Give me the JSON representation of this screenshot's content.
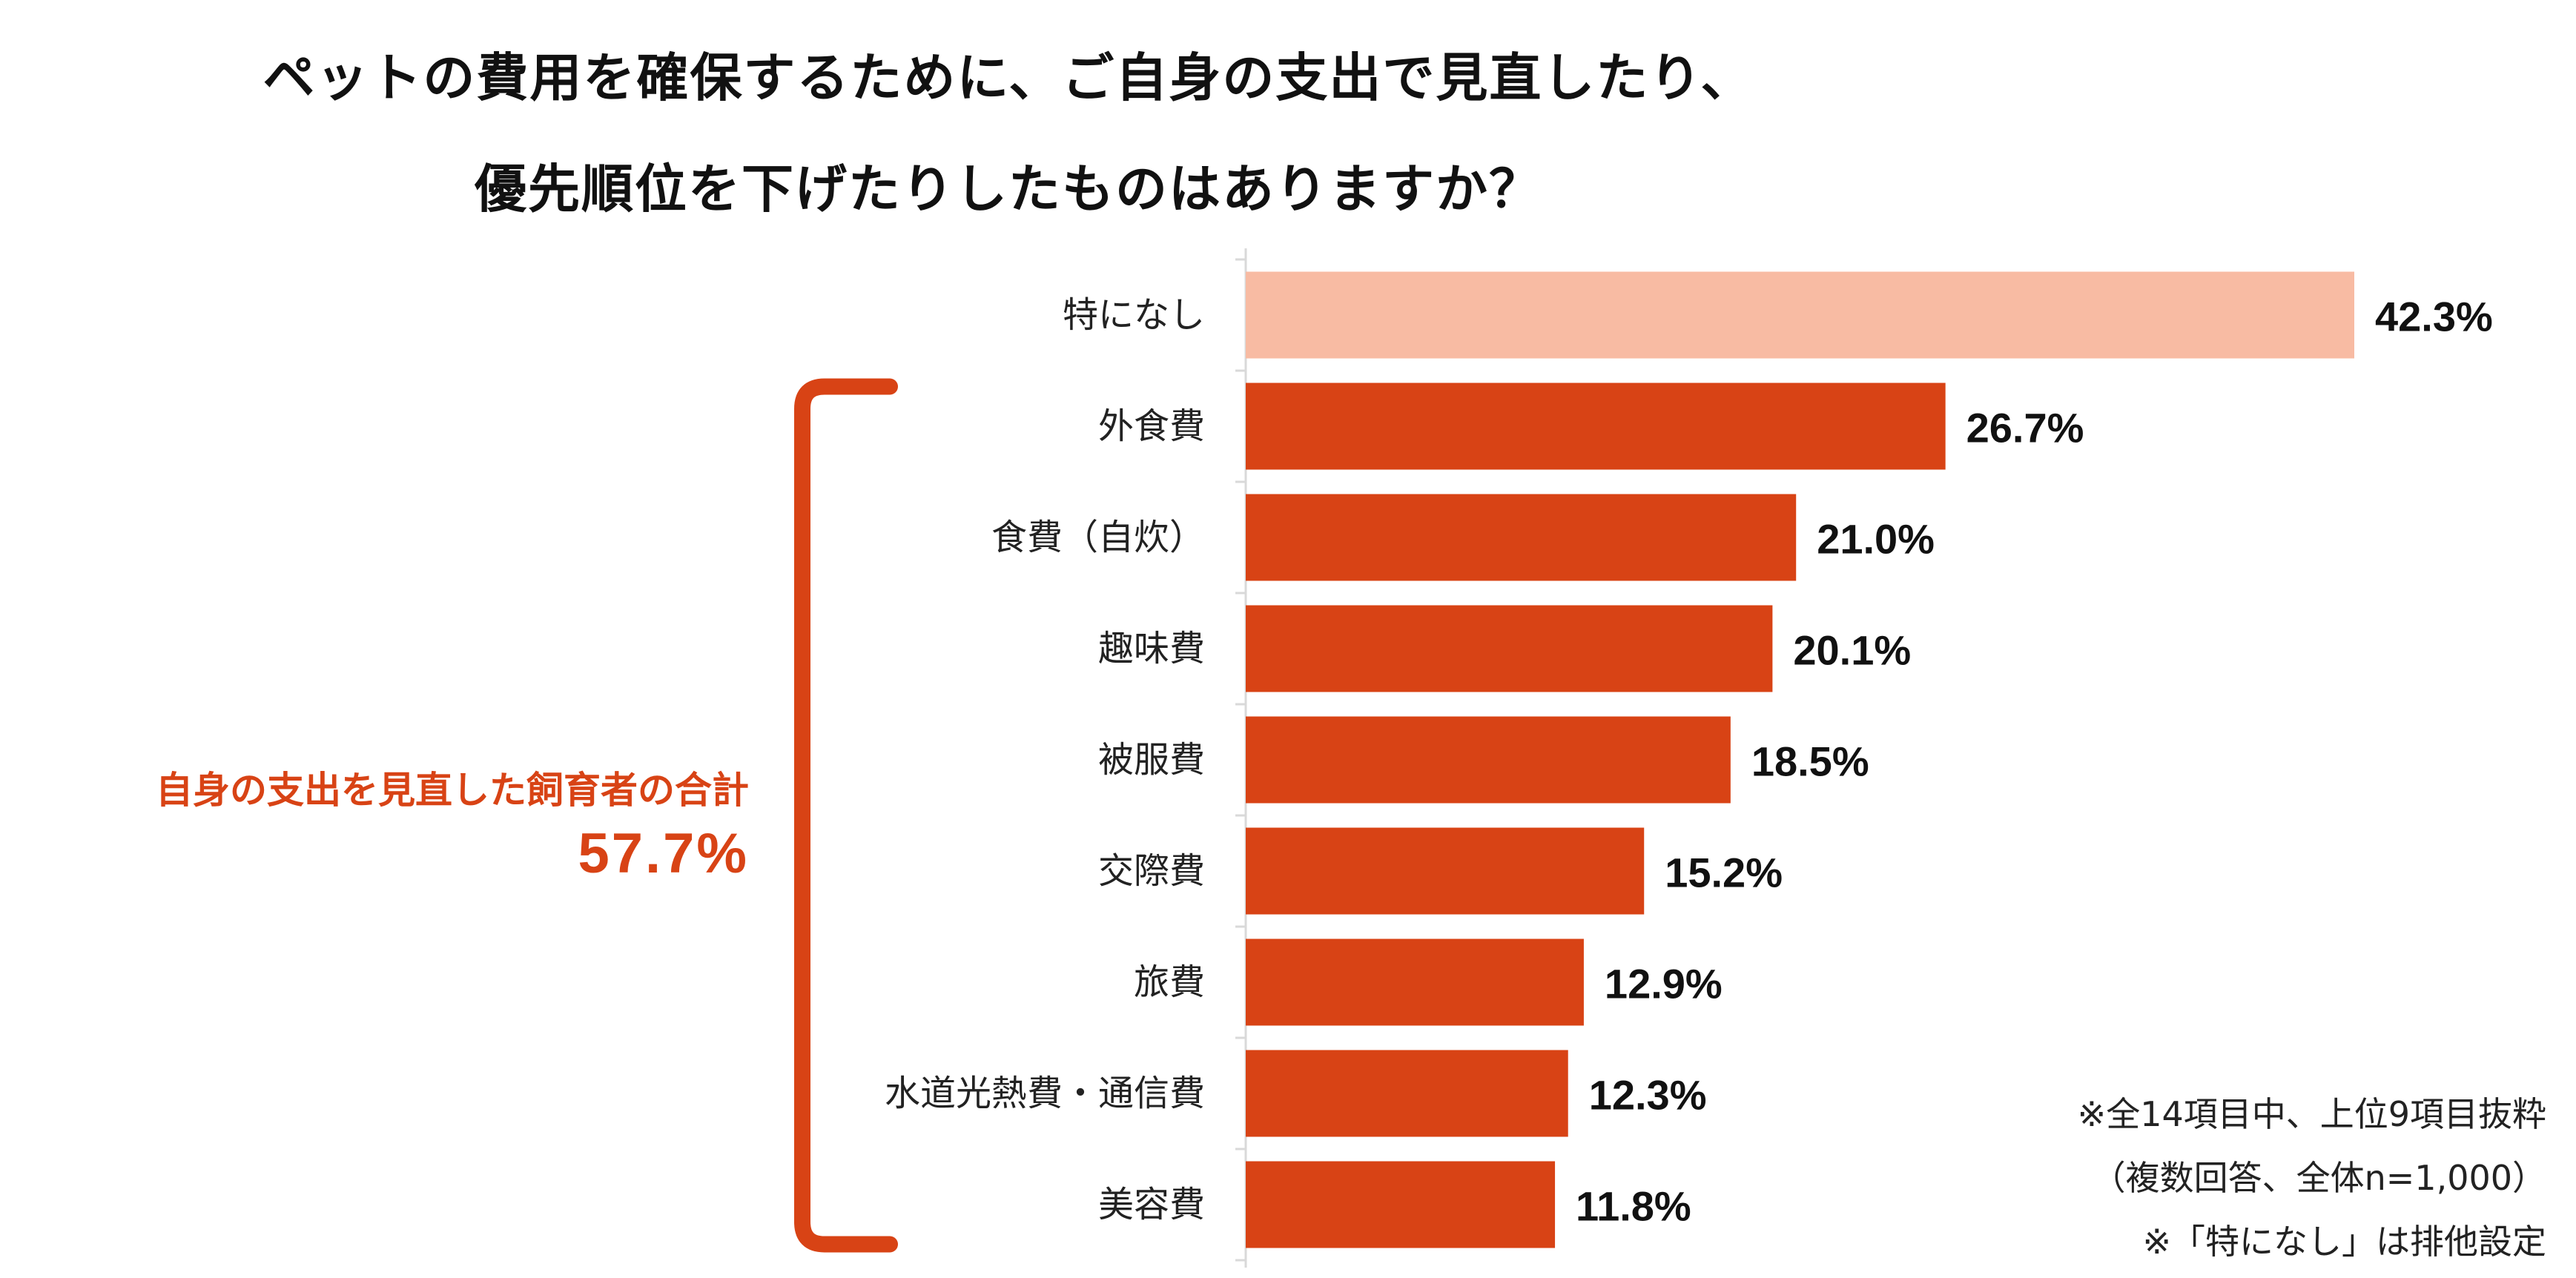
{
  "title": {
    "line1": "ペットの費用を確保するために、ご自身の支出で見直したり、",
    "line2": "優先順位を下げたりしたものはありますか？"
  },
  "group_label": {
    "text": "自身の支出を見直した飼育者の合計",
    "value": "57.7%"
  },
  "notes": {
    "line1": "※全14項目中、上位9項目抜粋",
    "line2": "（複数回答、全体n=1,000）",
    "line3": "※「特になし」は排他設定"
  },
  "colors": {
    "highlight_bar": "#f8bba3",
    "bar": "#d84315",
    "bracket": "#d84315",
    "axis": "#d9d9d9"
  },
  "chart_data": {
    "type": "bar",
    "orientation": "horizontal",
    "categories": [
      "特になし",
      "外食費",
      "食費（自炊）",
      "趣味費",
      "被服費",
      "交際費",
      "旅費",
      "水道光熱費・通信費",
      "美容費"
    ],
    "values": [
      42.3,
      26.7,
      21.0,
      20.1,
      18.5,
      15.2,
      12.9,
      12.3,
      11.8
    ],
    "value_labels": [
      "42.3%",
      "26.7%",
      "21.0%",
      "20.1%",
      "18.5%",
      "15.2%",
      "12.9%",
      "12.3%",
      "11.8%"
    ],
    "highlight_index": 0,
    "unit": "%",
    "xlim": [
      0,
      42.3
    ],
    "grid": false,
    "legend": "none",
    "bracket_range": [
      1,
      8
    ]
  }
}
